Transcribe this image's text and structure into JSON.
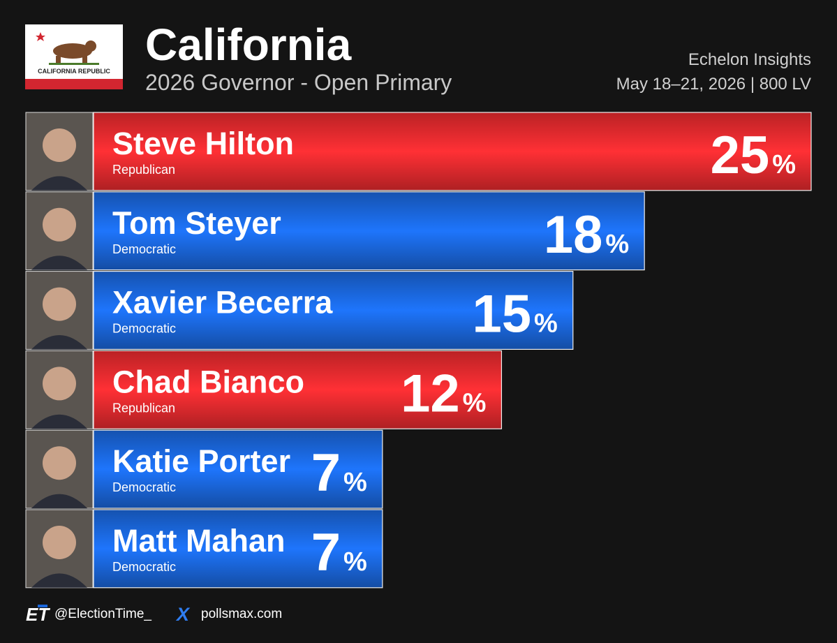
{
  "chart_data": {
    "type": "bar",
    "title": "California",
    "subtitle": "2026 Governor - Open Primary",
    "source": "Echelon Insights",
    "details": "May 18–21, 2026 | 800 LV",
    "flag_text": "CALIFORNIA REPUBLIC",
    "categories": [
      "Steve Hilton",
      "Tom Steyer",
      "Xavier Becerra",
      "Chad Bianco",
      "Katie Porter",
      "Matt Mahan"
    ],
    "parties": [
      "Republican",
      "Democratic",
      "Democratic",
      "Republican",
      "Democratic",
      "Democratic"
    ],
    "values": [
      25,
      18,
      15,
      12,
      7,
      7
    ],
    "value_labels": [
      "25%",
      "18%",
      "15%",
      "12%",
      "7%",
      "7%"
    ],
    "colors": [
      "#e82a2e",
      "#1a66db",
      "#1a66db",
      "#e82a2e",
      "#1a66db",
      "#1a66db"
    ]
  },
  "footer": {
    "handle": "@ElectionTime_",
    "website": "pollsmax.com"
  }
}
